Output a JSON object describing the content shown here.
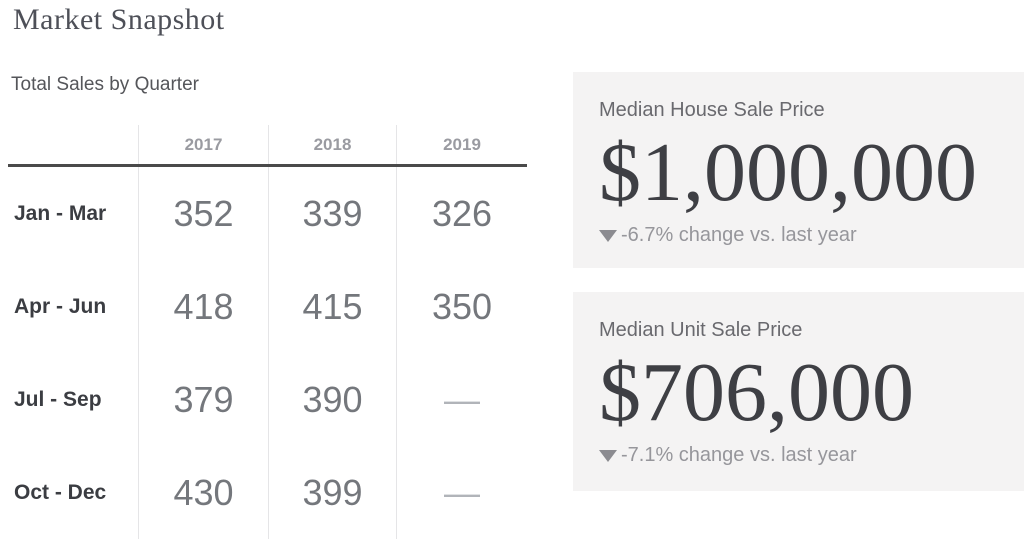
{
  "page": {
    "title": "Market Snapshot",
    "subtitle": "Total Sales by Quarter"
  },
  "table": {
    "headers": [
      "",
      "2017",
      "2018",
      "2019"
    ],
    "rows": [
      {
        "label": "Jan - Mar",
        "values": [
          "352",
          "339",
          "326"
        ]
      },
      {
        "label": "Apr - Jun",
        "values": [
          "418",
          "415",
          "350"
        ]
      },
      {
        "label": "Jul - Sep",
        "values": [
          "379",
          "390",
          "—"
        ]
      },
      {
        "label": "Oct - Dec",
        "values": [
          "430",
          "399",
          "—"
        ]
      }
    ]
  },
  "cards": [
    {
      "title": "Median House Sale Price",
      "value": "$1,000,000",
      "change_icon": "down-triangle-icon",
      "change_text": "-6.7% change vs. last year"
    },
    {
      "title": "Median Unit Sale Price",
      "value": "$706,000",
      "change_icon": "down-triangle-icon",
      "change_text": "-7.1% change vs. last year"
    }
  ],
  "colors": {
    "card_background": "#f4f3f3",
    "table_rule": "#4a4a4a",
    "divider": "#e5e5e7",
    "price_text": "#3e3f44",
    "muted_text": "#96969b"
  },
  "chart_data": {
    "type": "table",
    "title": "Total Sales by Quarter",
    "categories": [
      "Jan - Mar",
      "Apr - Jun",
      "Jul - Sep",
      "Oct - Dec"
    ],
    "series": [
      {
        "name": "2017",
        "values": [
          352,
          418,
          379,
          430
        ]
      },
      {
        "name": "2018",
        "values": [
          339,
          415,
          390,
          399
        ]
      },
      {
        "name": "2019",
        "values": [
          326,
          350,
          null,
          null
        ]
      }
    ],
    "kpis": [
      {
        "label": "Median House Sale Price",
        "value": 1000000,
        "change_pct": -6.7,
        "change_direction": "down"
      },
      {
        "label": "Median Unit Sale Price",
        "value": 706000,
        "change_pct": -7.1,
        "change_direction": "down"
      }
    ]
  }
}
